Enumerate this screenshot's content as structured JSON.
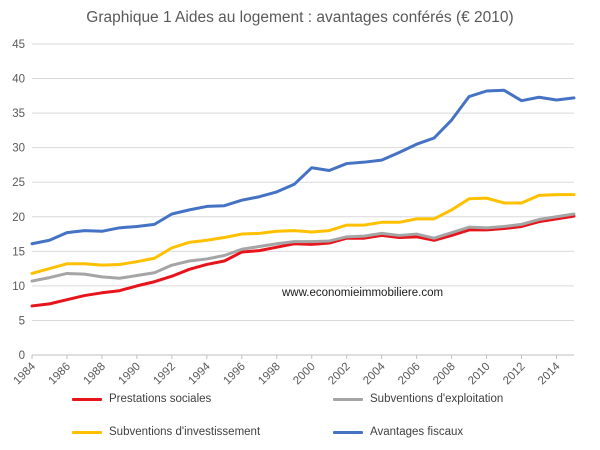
{
  "chart_data": {
    "type": "line",
    "title": "Graphique 1 Aides au logement : avantages conférés (€ 2010)",
    "xlabel": "",
    "ylabel": "",
    "xlim": [
      1984,
      2015
    ],
    "ylim": [
      0,
      45
    ],
    "y_ticks": [
      0,
      5,
      10,
      15,
      20,
      25,
      30,
      35,
      40,
      45
    ],
    "x_tick_labels": [
      "1984",
      "1986",
      "1988",
      "1990",
      "1992",
      "1994",
      "1996",
      "1998",
      "2000",
      "2002",
      "2004",
      "2006",
      "2008",
      "2010",
      "2012",
      "2014"
    ],
    "grid": "horizontal",
    "legend": "bottom",
    "x": [
      1984,
      1985,
      1986,
      1987,
      1988,
      1989,
      1990,
      1991,
      1992,
      1993,
      1994,
      1995,
      1996,
      1997,
      1998,
      1999,
      2000,
      2001,
      2002,
      2003,
      2004,
      2005,
      2006,
      2007,
      2008,
      2009,
      2010,
      2011,
      2012,
      2013,
      2014,
      2015
    ],
    "series": [
      {
        "name": "Prestations sociales",
        "color": "#e8141b",
        "values": [
          7.1,
          7.4,
          8.0,
          8.6,
          9.0,
          9.3,
          10.0,
          10.6,
          11.4,
          12.4,
          13.1,
          13.6,
          14.9,
          15.1,
          15.6,
          16.1,
          16.0,
          16.2,
          16.9,
          16.9,
          17.3,
          17.0,
          17.1,
          16.6,
          17.3,
          18.1,
          18.1,
          18.3,
          18.6,
          19.3,
          19.7,
          20.1
        ]
      },
      {
        "name": "Subventions d'exploitation",
        "color": "#a5a5a5",
        "values": [
          10.7,
          11.2,
          11.8,
          11.7,
          11.3,
          11.1,
          11.5,
          11.9,
          13.0,
          13.6,
          13.9,
          14.4,
          15.3,
          15.7,
          16.1,
          16.4,
          16.4,
          16.5,
          17.1,
          17.2,
          17.6,
          17.3,
          17.5,
          16.9,
          17.7,
          18.5,
          18.4,
          18.6,
          18.9,
          19.6,
          20.0,
          20.4
        ]
      },
      {
        "name": "Subventions d'investissement",
        "color": "#ffc000",
        "values": [
          11.8,
          12.5,
          13.2,
          13.2,
          13.0,
          13.1,
          13.5,
          14.0,
          15.5,
          16.3,
          16.6,
          17.0,
          17.5,
          17.6,
          17.9,
          18.0,
          17.8,
          18.0,
          18.8,
          18.8,
          19.2,
          19.2,
          19.7,
          19.7,
          21.0,
          22.6,
          22.7,
          22.0,
          22.0,
          23.1,
          23.2,
          23.2
        ]
      },
      {
        "name": "Avantages fiscaux",
        "color": "#4472c4",
        "values": [
          16.1,
          16.6,
          17.7,
          18.0,
          17.9,
          18.4,
          18.6,
          18.9,
          20.4,
          21.0,
          21.5,
          21.6,
          22.4,
          22.9,
          23.6,
          24.7,
          27.1,
          26.7,
          27.7,
          27.9,
          28.2,
          29.3,
          30.5,
          31.4,
          34.0,
          37.4,
          38.2,
          38.3,
          36.8,
          37.3,
          36.9,
          37.2
        ]
      }
    ],
    "annotation": "www.economieimmobiliere.com"
  }
}
